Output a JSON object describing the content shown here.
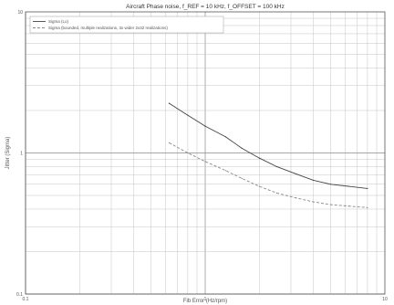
{
  "chart_data": {
    "type": "line",
    "title": "Aircraft Phase noise, f_REF = 10 kHz, f_OFFSET = 100 kHz",
    "xlabel": "Fib Error (Hz/rpm)",
    "ylabel": "Jitter (Sigma)",
    "x_scale": "log",
    "y_scale": "log",
    "xlim": [
      0.1,
      10
    ],
    "ylim": [
      0.1,
      10
    ],
    "x_ticks": [
      {
        "value": 0.1,
        "label": "0.1"
      },
      {
        "value": 1,
        "label": "1"
      },
      {
        "value": 10,
        "label": "10"
      }
    ],
    "y_ticks": [
      {
        "value": 0.1,
        "label": "0.1"
      },
      {
        "value": 1,
        "label": "1"
      },
      {
        "value": 10,
        "label": "10"
      }
    ],
    "grid": true,
    "legend_position": "top-left",
    "series": [
      {
        "name": "Sigma (Lo)",
        "style": "solid",
        "color": "#444444",
        "x": [
          0.63,
          0.8,
          1.0,
          1.3,
          1.6,
          2.0,
          2.5,
          3.2,
          4.0,
          5.0,
          6.3,
          8.0
        ],
        "y": [
          2.25,
          1.85,
          1.55,
          1.3,
          1.08,
          0.92,
          0.8,
          0.71,
          0.64,
          0.6,
          0.58,
          0.56
        ]
      },
      {
        "name": "Sigma (bounded, multiple realizations, 3x wider 2x32 realizations)",
        "style": "dashed",
        "color": "#888888",
        "x": [
          0.63,
          0.8,
          1.0,
          1.3,
          1.6,
          2.0,
          2.5,
          3.2,
          4.0,
          5.0,
          6.3,
          8.0
        ],
        "y": [
          1.18,
          1.0,
          0.87,
          0.75,
          0.66,
          0.58,
          0.52,
          0.48,
          0.45,
          0.43,
          0.42,
          0.41
        ]
      }
    ]
  },
  "colors": {
    "background": "#ffffff",
    "frame": "#555555",
    "grid_major": "#8a8a8a",
    "grid_minor": "#c4c4c4"
  }
}
